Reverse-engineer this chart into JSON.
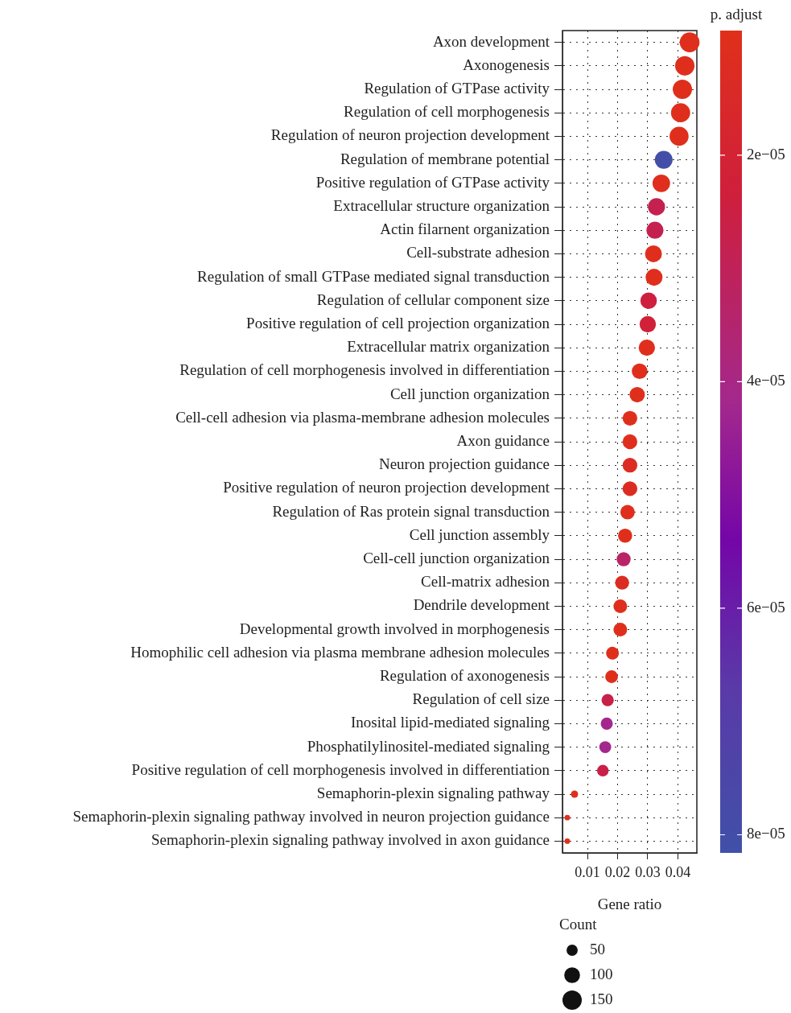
{
  "chart_data": {
    "type": "bubble",
    "orientation": "horizontal",
    "xlabel": "Gene ratio",
    "clabel": "p. adjust",
    "legend_title": "Count",
    "grid": true,
    "categories": [
      "Axon development",
      "Axonogenesis",
      "Regulation of GTPase activity",
      "Regulation of cell morphogenesis",
      "Regulation of neuron projection development",
      "Regulation of membrane potential",
      "Positive regulation of GTPase activity",
      "Extracellular structure organization",
      "Actin filarnent organization",
      "Cell-substrate adhesion",
      "Regulation of small GTPase mediated signal transduction",
      "Regulation of cellular component size",
      "Positive regulation of cell projection organization",
      "Extracellular matrix organization",
      "Regulation of cell morphogenesis involved in differentiation",
      "Cell junction organization",
      "Cell-cell adhesion via plasma-membrane adhesion molecules",
      "Axon guidance",
      "Neuron projection guidance",
      "Positive regulation of neuron projection development",
      "Regulation of Ras protein signal transduction",
      "Cell junction assembly",
      "Cell-cell junction organization",
      "Cell-matrix adhesion",
      "Dendrile development",
      "Developmental growth involved in morphogenesis",
      "Homophilic cell adhesion via plasma membrane adhesion molecules",
      "Regulation of axonogenesis",
      "Regulation of cell size",
      "Inosital lipid-mediated signaling",
      "Phosphatilylinositel-mediated signaling",
      "Positive regulation of cell morphogenesis involved in differentiation",
      "Semaphorin-plexin signaling pathway",
      "Semaphorin-plexin signaling pathway involved in neuron projection guidance",
      "Semaphorin-plexin signaling pathway involved in axon guidance"
    ],
    "values": [
      0.0439,
      0.0423,
      0.0415,
      0.0409,
      0.0404,
      0.0353,
      0.0345,
      0.0329,
      0.0324,
      0.0319,
      0.0321,
      0.0303,
      0.03,
      0.0297,
      0.0273,
      0.0265,
      0.0241,
      0.0241,
      0.0241,
      0.0241,
      0.0233,
      0.0225,
      0.022,
      0.0215,
      0.0209,
      0.0209,
      0.0183,
      0.018,
      0.0167,
      0.0164,
      0.0159,
      0.0151,
      0.0057,
      0.0033,
      0.0033
    ],
    "sizes": [
      158,
      152,
      149,
      147,
      145,
      127,
      124,
      118,
      117,
      115,
      116,
      109,
      108,
      107,
      98,
      95,
      87,
      87,
      87,
      87,
      84,
      81,
      79,
      77,
      75,
      75,
      66,
      65,
      60,
      59,
      57,
      54,
      21,
      12,
      12
    ],
    "size_legend": [
      50,
      100,
      150
    ],
    "cvalues": [
      1e-05,
      1e-05,
      1e-05,
      1e-05,
      1e-05,
      8e-05,
      1e-05,
      2.8e-05,
      2.8e-05,
      1e-05,
      1e-05,
      2.4e-05,
      2.2e-05,
      1e-05,
      1e-05,
      1e-05,
      1e-05,
      1e-05,
      1.2e-05,
      1.2e-05,
      1e-05,
      1e-05,
      3.3e-05,
      1.2e-05,
      1e-05,
      1e-05,
      1e-05,
      1e-05,
      2.6e-05,
      4.2e-05,
      4.2e-05,
      2.6e-05,
      1e-05,
      1e-05,
      1e-05
    ],
    "xlim": [
      0.0017,
      0.0463
    ],
    "xticks": [
      0.01,
      0.02,
      0.03,
      0.04
    ],
    "clim": [
      9e-06,
      8.16e-05
    ],
    "cticks": [
      {
        "value": 2e-05,
        "label": "2e−05"
      },
      {
        "value": 4e-05,
        "label": "4e−05"
      },
      {
        "value": 6e-05,
        "label": "6e−05"
      },
      {
        "value": 8e-05,
        "label": "8e−05"
      }
    ]
  }
}
